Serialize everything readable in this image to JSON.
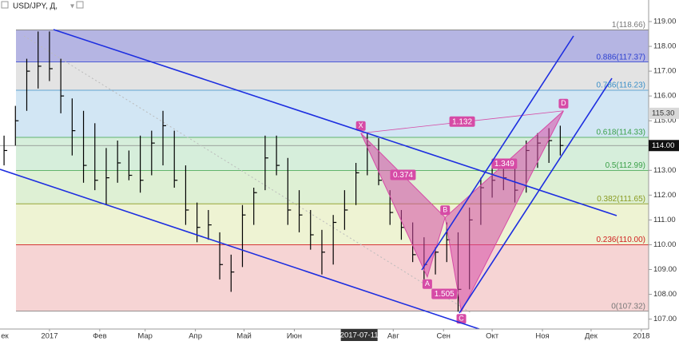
{
  "chart_data": {
    "type": "ohlc",
    "title": "USD/JPY, Д,",
    "x": [
      -28,
      -21,
      -14,
      -7,
      0,
      7,
      14,
      21,
      28,
      35,
      42,
      49,
      56,
      63,
      70,
      77,
      84,
      91,
      98,
      105,
      112,
      119,
      126,
      133,
      140,
      147,
      154,
      161,
      168,
      175,
      182,
      189,
      196,
      203,
      210,
      217,
      224,
      231,
      238,
      245,
      252,
      259,
      266,
      273,
      280,
      287,
      294,
      301,
      308,
      315
    ],
    "high": [
      114.4,
      115.6,
      117.5,
      118.6,
      118.6,
      117.5,
      115.9,
      115.4,
      114.9,
      113.9,
      114.2,
      113.8,
      114.4,
      114.6,
      115.4,
      114.6,
      113.2,
      111.7,
      111.4,
      110.5,
      109.6,
      111.6,
      112.3,
      114.4,
      114.4,
      113.5,
      112.2,
      111.4,
      110.6,
      111.2,
      112.2,
      113.3,
      114.5,
      114.3,
      112.2,
      111.4,
      110.9,
      110.3,
      109.9,
      110.9,
      110.5,
      111.5,
      112.7,
      113.3,
      113.4,
      113.4,
      114.2,
      114.5,
      114.7,
      114.8
    ],
    "low": [
      113.2,
      114,
      115.4,
      116.3,
      116.6,
      115.3,
      113.6,
      112.5,
      112.2,
      111.6,
      112.5,
      112.6,
      112.1,
      112.8,
      113.2,
      112.3,
      110.8,
      110.1,
      110.2,
      108.6,
      108.1,
      109.1,
      110.8,
      112.2,
      112.8,
      110.8,
      110.5,
      109.8,
      108.8,
      109.2,
      110.6,
      111.6,
      112.8,
      112.4,
      110.8,
      110.2,
      109.3,
      108.6,
      108.8,
      109.3,
      107.3,
      108.2,
      110.8,
      111.9,
      112.2,
      111.7,
      112.1,
      113.1,
      113.3,
      113.6
    ],
    "close": [
      113.8,
      115,
      117,
      117.2,
      117.1,
      116,
      114.6,
      113.2,
      112.6,
      112.7,
      113.3,
      112.8,
      112.6,
      114.1,
      114.8,
      112.6,
      111.4,
      110.7,
      110.8,
      109.2,
      108.9,
      111.2,
      112.1,
      113.5,
      113.2,
      111.4,
      111.2,
      110.4,
      109.7,
      110.9,
      111.4,
      112.9,
      114,
      112.6,
      111.3,
      110.7,
      109.6,
      109.2,
      109.7,
      110.2,
      108.2,
      111,
      112.3,
      112.6,
      112.7,
      112.2,
      113.8,
      114.1,
      114.2,
      114
    ],
    "color": "#000000",
    "xlim": [
      -30.5,
      369.5
    ],
    "xticks": [
      {
        "value": -31,
        "label": "ек"
      },
      {
        "value": 0,
        "label": "2017"
      },
      {
        "value": 31,
        "label": "Фев"
      },
      {
        "value": 59,
        "label": "Мар"
      },
      {
        "value": 90,
        "label": "Апр"
      },
      {
        "value": 120,
        "label": "Май"
      },
      {
        "value": 151,
        "label": "Июн"
      },
      {
        "value": 212,
        "label": "Авг"
      },
      {
        "value": 243,
        "label": "Сен"
      },
      {
        "value": 273,
        "label": "Окт"
      },
      {
        "value": 304,
        "label": "Ноя"
      },
      {
        "value": 334,
        "label": "Дек"
      },
      {
        "value": 365,
        "label": "2018"
      }
    ],
    "ylim": [
      106.6,
      119.87
    ],
    "yticks": [
      {
        "value": 107,
        "label": "107.00"
      },
      {
        "value": 108,
        "label": "108.00"
      },
      {
        "value": 109,
        "label": "109.00"
      },
      {
        "value": 110,
        "label": "110.00"
      },
      {
        "value": 111,
        "label": "111.00"
      },
      {
        "value": 112,
        "label": "112.00"
      },
      {
        "value": 113,
        "label": "113.00"
      },
      {
        "value": 114,
        "label": "114.00"
      },
      {
        "value": 115,
        "label": "115.00"
      },
      {
        "value": 116,
        "label": "116.00"
      },
      {
        "value": 117,
        "label": "117.00"
      },
      {
        "value": 118,
        "label": "118.00"
      },
      {
        "value": 119,
        "label": "119.00"
      }
    ],
    "last_price": {
      "value": 115.3,
      "label": "115.30"
    },
    "crosshair": {
      "price": {
        "value": 114,
        "label": "114.00"
      },
      "date": {
        "value": 191,
        "label": "2017-07-11"
      }
    },
    "fib_levels": [
      {
        "value": 118.66,
        "label": "1(118.66)",
        "color": "#b5b5e3",
        "label_color": "#777777"
      },
      {
        "value": 117.37,
        "label": "0.886(117.37)",
        "color": "#e3e3e3",
        "label_color": "#2b3fd0"
      },
      {
        "value": 116.23,
        "label": "0.786(116.23)",
        "color": "#d2e6f4",
        "label_color": "#3a8fc8"
      },
      {
        "value": 114.33,
        "label": "0.618(114.33)",
        "color": "#d6eedb",
        "label_color": "#3aa048"
      },
      {
        "value": 112.99,
        "label": "0.5(112.99)",
        "color": "#def0d4",
        "label_color": "#3aa048"
      },
      {
        "value": 111.65,
        "label": "0.382(111.65)",
        "color": "#eef3d3",
        "label_color": "#8a9a20"
      },
      {
        "value": 110.0,
        "label": "0.236(110.00)",
        "color": "#f6d4d4",
        "label_color": "#d02020"
      },
      {
        "value": 107.32,
        "label": "0(107.32)",
        "color": "#ffffff",
        "label_color": "#777777"
      }
    ],
    "pattern": {
      "color": "#d64ba6",
      "points": [
        {
          "label": "X",
          "x": 192,
          "y": 114.5
        },
        {
          "label": "A",
          "x": 233,
          "y": 108.7
        },
        {
          "label": "B",
          "x": 244,
          "y": 111.1
        },
        {
          "label": "C",
          "x": 254,
          "y": 107.3
        },
        {
          "label": "D",
          "x": 317,
          "y": 115.4
        }
      ],
      "ratios": [
        0.374,
        1.132,
        1.505,
        1.349
      ]
    }
  }
}
